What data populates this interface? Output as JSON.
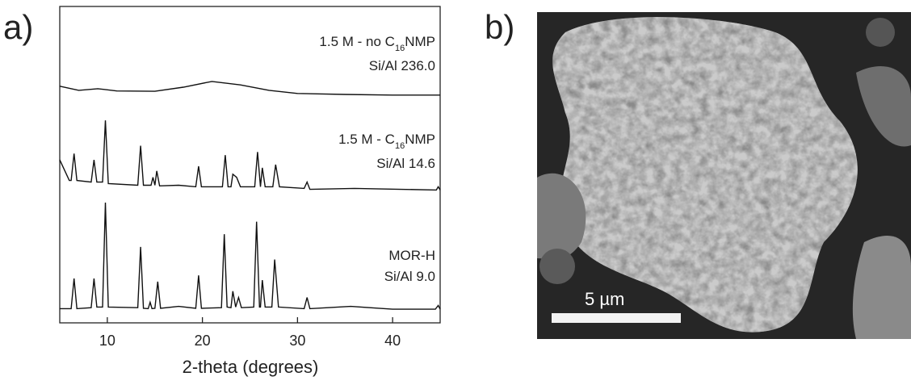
{
  "chart_data": {
    "type": "line",
    "panel_label": "a)",
    "xlabel": "2-theta (degrees)",
    "xlim": [
      5,
      45
    ],
    "ylim": [
      0,
      100
    ],
    "xticks": [
      10,
      20,
      30,
      40
    ],
    "color": "#111",
    "series": [
      {
        "label_parts": [
          "1.5 M - no C",
          "16",
          "NMP"
        ],
        "ratio": "Si/Al 236.0",
        "x": [
          5,
          7,
          9,
          11,
          15,
          18,
          21,
          24,
          27,
          30,
          35,
          40,
          45
        ],
        "values": [
          74.8,
          73.5,
          74,
          73.3,
          73.2,
          74.5,
          76.3,
          75.2,
          73.5,
          72.5,
          72.2,
          72,
          72
        ]
      },
      {
        "label_parts": [
          "1.5 M - C",
          "16",
          "NMP"
        ],
        "ratio": "Si/Al 14.6",
        "x": [
          5,
          6,
          6.2,
          6.5,
          6.8,
          8.3,
          8.6,
          8.9,
          9.5,
          9.8,
          10.1,
          13.2,
          13.5,
          13.8,
          14.6,
          14.8,
          15,
          15.2,
          15.5,
          17.5,
          19.3,
          19.6,
          19.9,
          22.1,
          22.4,
          22.7,
          23,
          23.2,
          23.6,
          24,
          25.5,
          25.8,
          26.1,
          26.3,
          26.6,
          27.4,
          27.7,
          28.1,
          30.7,
          31,
          31.3,
          36,
          44.6,
          44.8,
          45
        ],
        "values": [
          51.5,
          45,
          45,
          53.5,
          45,
          44.5,
          51.5,
          44.5,
          44.5,
          64,
          44,
          43.5,
          56,
          43.5,
          43.5,
          46,
          43.5,
          48,
          43.3,
          43.5,
          43,
          49.5,
          43,
          43,
          53,
          43,
          43,
          47,
          46,
          43,
          43,
          54,
          43,
          49,
          43,
          43,
          50,
          43,
          42.5,
          44.5,
          42.2,
          42.5,
          42,
          43,
          42
        ]
      },
      {
        "label_parts": [
          "MOR-H"
        ],
        "ratio": "Si/Al 9.0",
        "x": [
          5,
          6.2,
          6.5,
          6.8,
          8.3,
          8.6,
          8.9,
          9.5,
          9.8,
          10.1,
          13.2,
          13.5,
          13.8,
          14.3,
          14.5,
          14.7,
          15,
          15.3,
          15.6,
          17.5,
          19.3,
          19.6,
          19.9,
          22,
          22.3,
          22.6,
          23,
          23.2,
          23.5,
          23.8,
          24.1,
          25.4,
          25.7,
          26,
          26.1,
          26.3,
          26.6,
          27.3,
          27.6,
          28,
          30.7,
          31,
          31.3,
          35.6,
          40,
          44.5,
          44.8,
          45
        ],
        "values": [
          4.5,
          4.5,
          14,
          4.5,
          4.8,
          14,
          5,
          5,
          38,
          5,
          4.8,
          24,
          4.6,
          4.5,
          6.5,
          4.5,
          4.6,
          13,
          4.6,
          5.2,
          4.6,
          15,
          4.6,
          4.8,
          28,
          5,
          4.8,
          10,
          5,
          8,
          4.8,
          5,
          32,
          5,
          5,
          13.5,
          5,
          5,
          20,
          5,
          4.5,
          8,
          4.5,
          5.2,
          4.3,
          4.3,
          5.5,
          4.3
        ]
      }
    ]
  },
  "image_panel": {
    "panel_label": "b)",
    "scale_bar": "5 µm"
  }
}
